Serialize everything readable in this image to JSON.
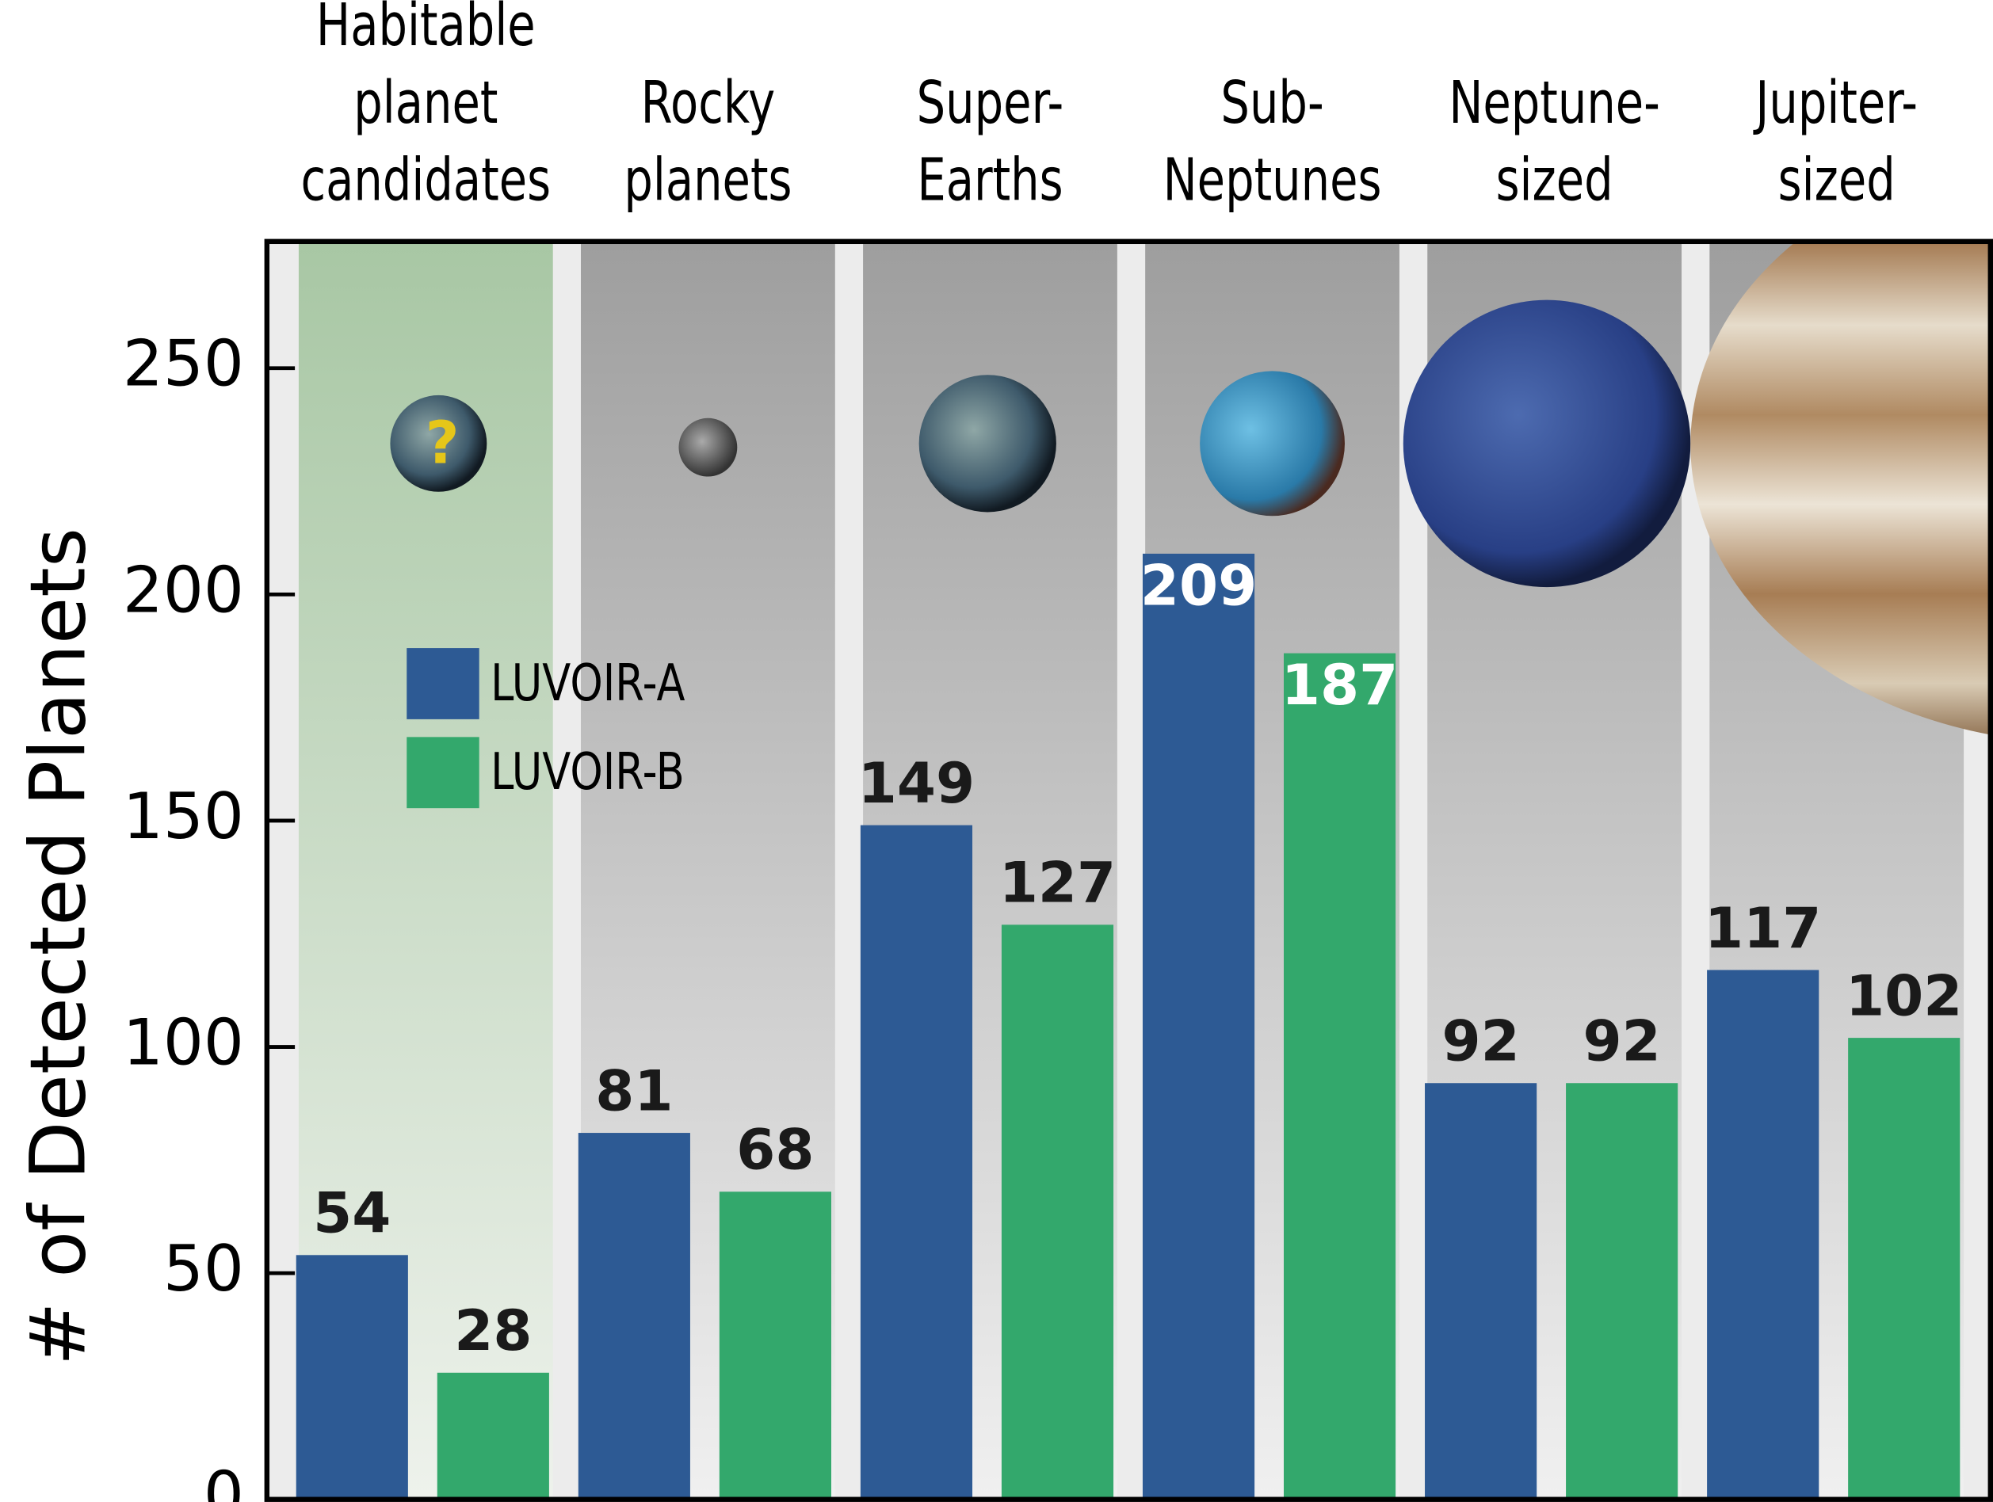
{
  "chart_data": {
    "type": "bar",
    "y_label": "# of Detected Planets",
    "categories": [
      "Habitable planet candidates",
      "Rocky planets",
      "Super-Earths",
      "Sub-Neptunes",
      "Neptune-sized",
      "Jupiter-sized"
    ],
    "series": [
      {
        "name": "LUVOIR-A",
        "color": "#2d5a94",
        "values": [
          54,
          81,
          149,
          209,
          92,
          117
        ]
      },
      {
        "name": "LUVOIR-B",
        "color": "#33a86c",
        "values": [
          28,
          68,
          127,
          187,
          92,
          102
        ]
      }
    ],
    "ylim": [
      0,
      278
    ],
    "yticks": [
      0,
      50,
      100,
      150,
      200,
      250
    ]
  }
}
